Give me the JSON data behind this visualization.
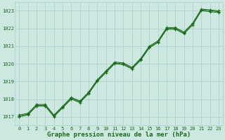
{
  "title": "Graphe pression niveau de la mer (hPa)",
  "x": [
    0,
    1,
    2,
    3,
    4,
    5,
    6,
    7,
    8,
    9,
    10,
    11,
    12,
    13,
    14,
    15,
    16,
    17,
    18,
    19,
    20,
    21,
    22,
    23
  ],
  "series": [
    [
      1017.1,
      1017.2,
      1017.7,
      1017.7,
      1017.1,
      1017.6,
      1018.1,
      1017.9,
      1018.4,
      1019.1,
      1019.6,
      1020.1,
      1020.05,
      1019.8,
      1020.3,
      1021.0,
      1021.3,
      1022.05,
      1022.05,
      1021.8,
      1022.3,
      1023.1,
      1023.05,
      1023.0
    ],
    [
      1017.05,
      1017.15,
      1017.65,
      1017.65,
      1017.05,
      1017.55,
      1018.05,
      1017.85,
      1018.35,
      1019.05,
      1019.55,
      1020.05,
      1020.0,
      1019.75,
      1020.25,
      1020.95,
      1021.25,
      1022.0,
      1022.0,
      1021.75,
      1022.25,
      1023.05,
      1023.0,
      1022.95
    ],
    [
      1017.0,
      1017.1,
      1017.6,
      1017.6,
      1017.0,
      1017.5,
      1018.0,
      1017.8,
      1018.3,
      1019.0,
      1019.5,
      1020.0,
      1019.95,
      1019.7,
      1020.2,
      1020.9,
      1021.2,
      1021.95,
      1021.95,
      1021.7,
      1022.2,
      1023.0,
      1022.95,
      1022.9
    ]
  ],
  "ylim": [
    1016.5,
    1023.5
  ],
  "yticks": [
    1017,
    1018,
    1019,
    1020,
    1021,
    1022,
    1023
  ],
  "xlim": [
    -0.5,
    23.5
  ],
  "xticks": [
    0,
    1,
    2,
    3,
    4,
    5,
    6,
    7,
    8,
    9,
    10,
    11,
    12,
    13,
    14,
    15,
    16,
    17,
    18,
    19,
    20,
    21,
    22,
    23
  ],
  "line_color": "#1a6b1a",
  "marker": "+",
  "bg_color": "#cce8e0",
  "grid_color": "#aacfc8",
  "label_color": "#1a6b1a",
  "title_fontsize": 6.5,
  "tick_fontsize": 5.0
}
